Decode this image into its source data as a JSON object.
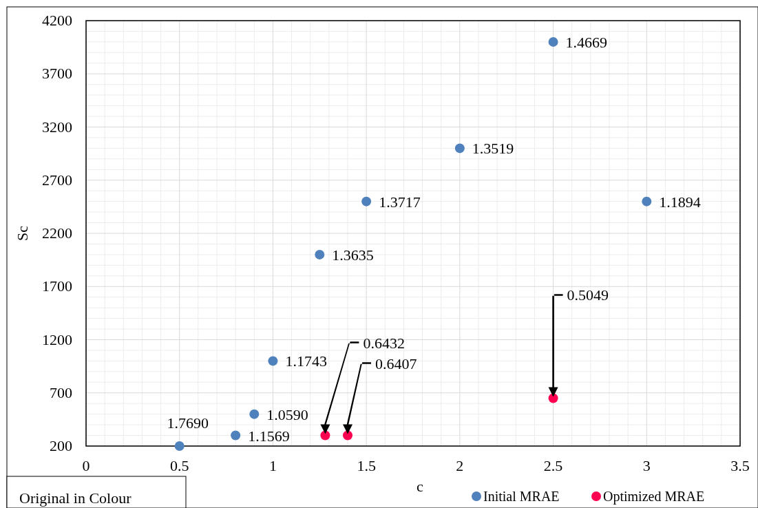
{
  "chart_data": {
    "type": "scatter",
    "xlabel": "c",
    "ylabel": "Sc",
    "xlim": [
      0,
      3.5
    ],
    "xticks": [
      0,
      0.5,
      1,
      1.5,
      2,
      2.5,
      3,
      3.5
    ],
    "ylim": [
      200,
      4200
    ],
    "yticks": [
      200,
      700,
      1200,
      1700,
      2200,
      2700,
      3200,
      3700,
      4200
    ],
    "grid": true,
    "legend": "bottom right",
    "marker": "circle",
    "annotations": [
      "Original in Colour",
      {
        "text": "1.7690",
        "x": 0.5,
        "y": 200
      },
      {
        "text": "1.1569",
        "x": 0.8,
        "y": 300
      },
      {
        "text": "1.0590",
        "x": 0.9,
        "y": 500
      },
      {
        "text": "1.1743",
        "x": 1,
        "y": 1000
      },
      {
        "text": "1.3635",
        "x": 1.25,
        "y": 2000
      },
      {
        "text": "1.3717",
        "x": 1.5,
        "y": 2500
      },
      {
        "text": "1.3519",
        "x": 2,
        "y": 3000
      },
      {
        "text": "1.4669",
        "x": 2.5,
        "y": 4000
      },
      {
        "text": "1.1894",
        "x": 3,
        "y": 2500
      },
      "0.6432",
      "0.6407",
      "0.5049"
    ],
    "series": [
      {
        "name": "Initial MRAE",
        "color": "#4f81bd",
        "x": [
          0.5,
          0.8,
          0.9,
          1,
          1.25,
          1.5,
          2,
          2.5,
          3
        ],
        "values": [
          200,
          300,
          500,
          1000,
          2000,
          2500,
          3000,
          4000,
          2500
        ]
      },
      {
        "name": "Optimized MRAE",
        "color": "#ff0050",
        "x": [
          1.28,
          1.4,
          2.5
        ],
        "values": [
          300,
          300,
          650
        ]
      }
    ]
  }
}
